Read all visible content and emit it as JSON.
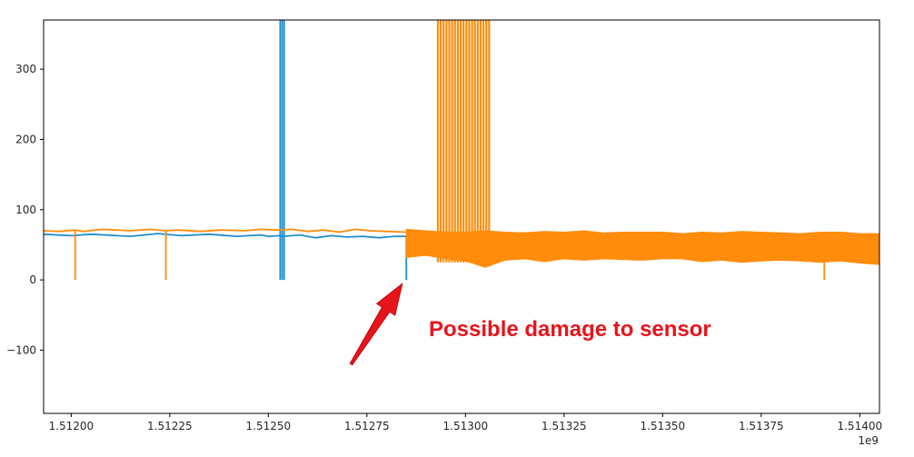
{
  "chart_data": {
    "type": "line",
    "title": "",
    "xlabel": "",
    "ylabel": "",
    "x_offset_label": "1e9",
    "xlim": [
      1.51193,
      1.51405
    ],
    "ylim": [
      -190,
      370
    ],
    "xticks": [
      1.512,
      1.51225,
      1.5125,
      1.51275,
      1.513,
      1.51325,
      1.5135,
      1.51375,
      1.514
    ],
    "xtick_labels": [
      "1.51200",
      "1.51225",
      "1.51250",
      "1.51275",
      "1.51300",
      "1.51325",
      "1.51350",
      "1.51375",
      "1.51400"
    ],
    "yticks": [
      -100,
      0,
      100,
      200,
      300
    ],
    "ytick_labels": [
      "−100",
      "0",
      "100",
      "200",
      "300"
    ],
    "grid": false,
    "colors": {
      "blue": "#1f8ecf",
      "orange": "#ff8c0a",
      "annotation": "#e8141b"
    },
    "series": [
      {
        "color": "blue",
        "x": [
          1.51193,
          1.512,
          1.51205,
          1.51215,
          1.51222,
          1.51228,
          1.51235,
          1.51242,
          1.51248,
          1.5125,
          1.51253,
          1.51254,
          1.51258,
          1.51262,
          1.51266,
          1.5127,
          1.51274,
          1.51278,
          1.51282,
          1.51285
        ],
        "y": [
          65,
          63,
          65,
          62,
          66,
          63,
          65,
          62,
          64,
          62,
          63,
          62,
          64,
          60,
          63,
          61,
          62,
          60,
          62,
          62
        ],
        "spikes": [
          {
            "x": 1.51253,
            "min": 0,
            "max": 370
          },
          {
            "x": 1.512535,
            "min": 0,
            "max": 370
          },
          {
            "x": 1.51254,
            "min": 0,
            "max": 370
          },
          {
            "x": 1.51285,
            "min": 0,
            "max": 62
          }
        ]
      },
      {
        "color": "orange",
        "x": [
          1.51193,
          1.51197,
          1.51201,
          1.51203,
          1.51208,
          1.51215,
          1.5122,
          1.51224,
          1.51227,
          1.51233,
          1.51238,
          1.51244,
          1.51248,
          1.51252,
          1.51256,
          1.5126,
          1.51264,
          1.51268,
          1.51272,
          1.51276,
          1.5128,
          1.51285
        ],
        "y": [
          70,
          69,
          71,
          69,
          72,
          70,
          72,
          70,
          71,
          69,
          71,
          70,
          72,
          71,
          72,
          69,
          71,
          68,
          72,
          70,
          69,
          68
        ],
        "spikes": [
          {
            "x": 1.51201,
            "min": 0,
            "max": 70
          },
          {
            "x": 1.51224,
            "min": 0,
            "max": 70
          },
          {
            "x": 1.51391,
            "min": 0,
            "max": 40
          }
        ],
        "band": {
          "x": [
            1.51285,
            1.5129,
            1.51295,
            1.513,
            1.51305,
            1.5131,
            1.51315,
            1.5132,
            1.51325,
            1.5133,
            1.51335,
            1.5134,
            1.51345,
            1.5135,
            1.51355,
            1.5136,
            1.51365,
            1.5137,
            1.51375,
            1.5138,
            1.51385,
            1.5139,
            1.51395,
            1.514,
            1.51405
          ],
          "upper": [
            72,
            70,
            68,
            68,
            70,
            68,
            67,
            69,
            68,
            70,
            67,
            68,
            68,
            68,
            66,
            68,
            67,
            69,
            68,
            67,
            66,
            68,
            68,
            66,
            66
          ],
          "lower": [
            32,
            35,
            30,
            27,
            18,
            28,
            30,
            26,
            30,
            28,
            30,
            29,
            28,
            30,
            30,
            26,
            28,
            25,
            27,
            28,
            27,
            25,
            27,
            24,
            22
          ]
        },
        "burst": {
          "x_start": 1.51293,
          "x_end": 1.51306,
          "min": 25,
          "max": 370
        }
      }
    ],
    "annotation": {
      "text": "Possible damage to sensor",
      "arrow_from": [
        1.51271,
        -120
      ],
      "arrow_to": [
        1.51284,
        -5
      ]
    }
  }
}
